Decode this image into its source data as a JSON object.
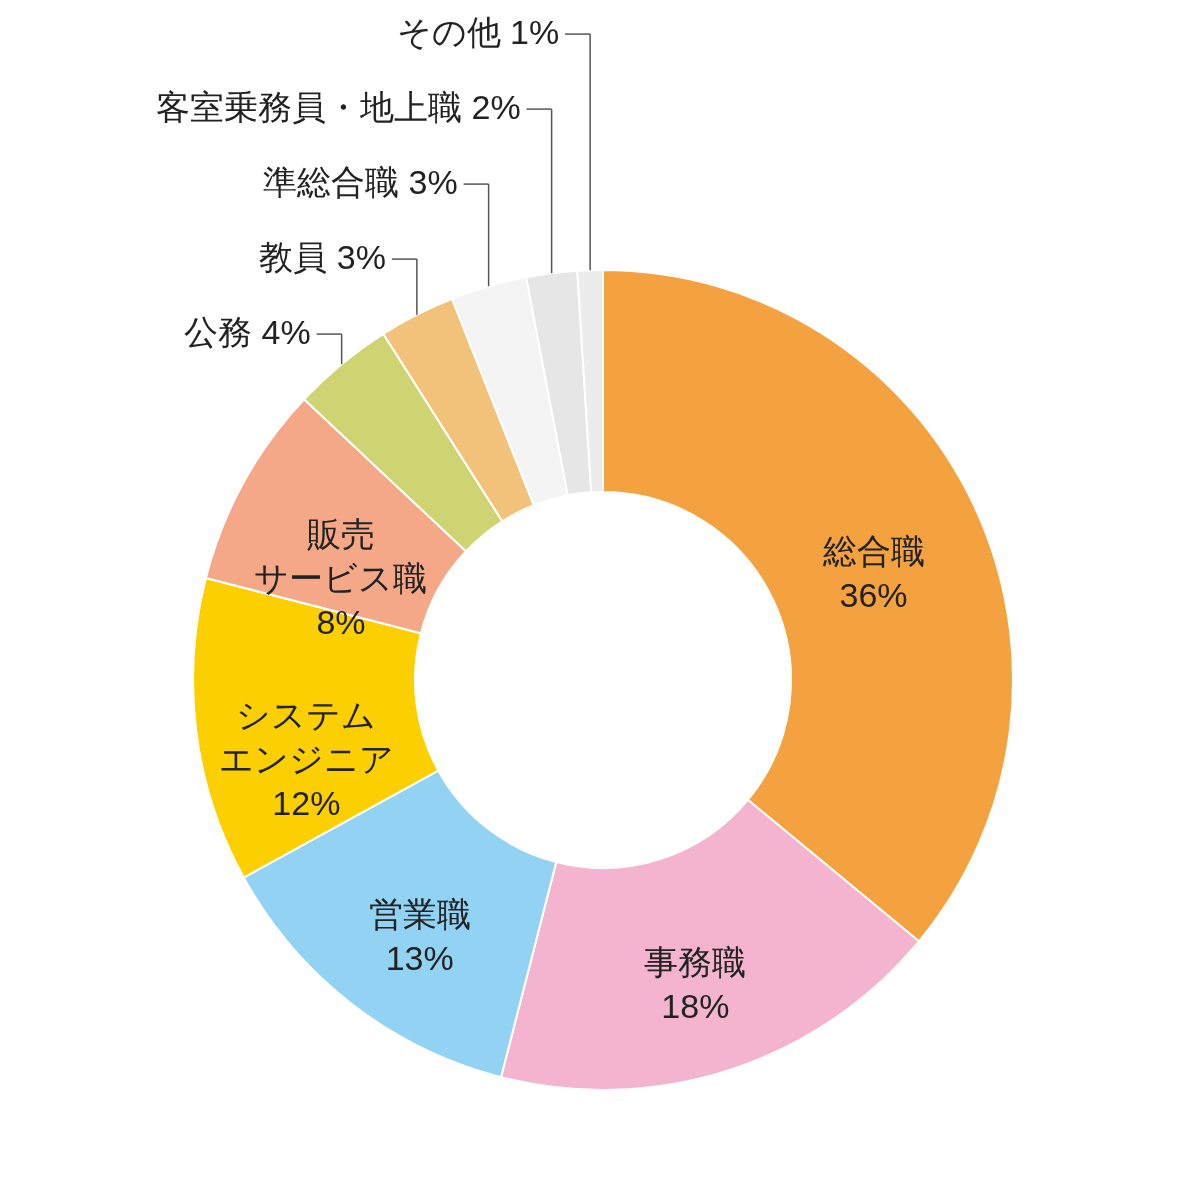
{
  "chart_data": {
    "type": "donut",
    "categories": [
      "総合職",
      "事務職",
      "営業職",
      "システムエンジニア",
      "販売サービス職",
      "公務",
      "教員",
      "準総合職",
      "客室乗務員・地上職",
      "その他"
    ],
    "values": [
      36,
      18,
      13,
      12,
      8,
      4,
      3,
      3,
      2,
      1
    ],
    "value_labels": [
      "36%",
      "18%",
      "13%",
      "12%",
      "8%",
      "4%",
      "3%",
      "3%",
      "2%",
      "1%"
    ],
    "colors": [
      "#f4a240",
      "#f4b4cf",
      "#92d3f4",
      "#fcd000",
      "#f4a888",
      "#cfd472",
      "#f2c27a",
      "#f4f4f4",
      "#e6e6e6",
      "#ececec"
    ]
  }
}
